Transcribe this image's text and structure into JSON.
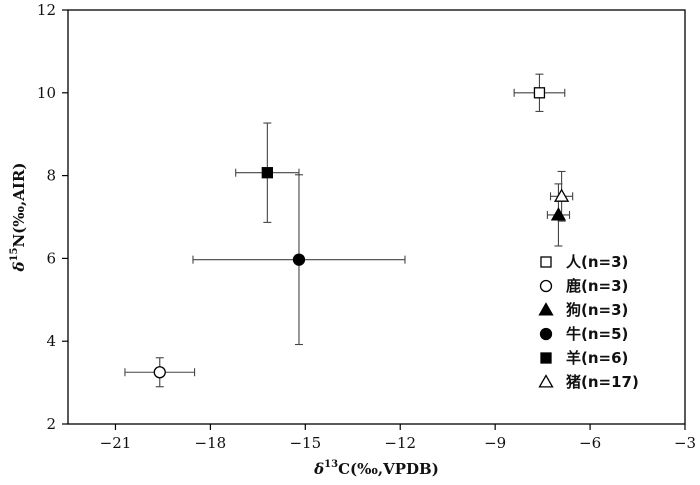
{
  "chart_data": {
    "type": "scatter",
    "title": "",
    "xlabel_parts": [
      "δ",
      "13",
      "C(‰,VPDB)"
    ],
    "ylabel_parts": [
      "δ",
      "15",
      "N(‰,AIR)"
    ],
    "xlim": [
      -22.5,
      -3
    ],
    "ylim": [
      2,
      12
    ],
    "xticks": [
      -21,
      -18,
      -15,
      -12,
      -9,
      -6,
      -3
    ],
    "yticks": [
      2,
      4,
      6,
      8,
      10,
      12
    ],
    "grid": false,
    "legend_position": "right",
    "series": [
      {
        "name": "人(n=3)",
        "marker": "square-open",
        "x": -7.6,
        "y": 10.0,
        "x_err": 0.8,
        "y_err": 0.45
      },
      {
        "name": "鹿(n=3)",
        "marker": "circle-open",
        "x": -19.6,
        "y": 3.25,
        "x_err": 1.1,
        "y_err": 0.35
      },
      {
        "name": "狗(n=3)",
        "marker": "triangle-filled",
        "x": -7.0,
        "y": 7.05,
        "x_err": 0.35,
        "y_err": 0.75
      },
      {
        "name": "牛(n=5)",
        "marker": "circle-filled",
        "x": -15.2,
        "y": 5.97,
        "x_err": 3.35,
        "y_err": 2.05
      },
      {
        "name": "羊(n=6)",
        "marker": "square-filled",
        "x": -16.2,
        "y": 8.07,
        "x_err": 1.0,
        "y_err": 1.2
      },
      {
        "name": "猪(n=17)",
        "marker": "triangle-open",
        "x": -6.9,
        "y": 7.5,
        "x_err": 0.35,
        "y_err": 0.6
      }
    ]
  }
}
